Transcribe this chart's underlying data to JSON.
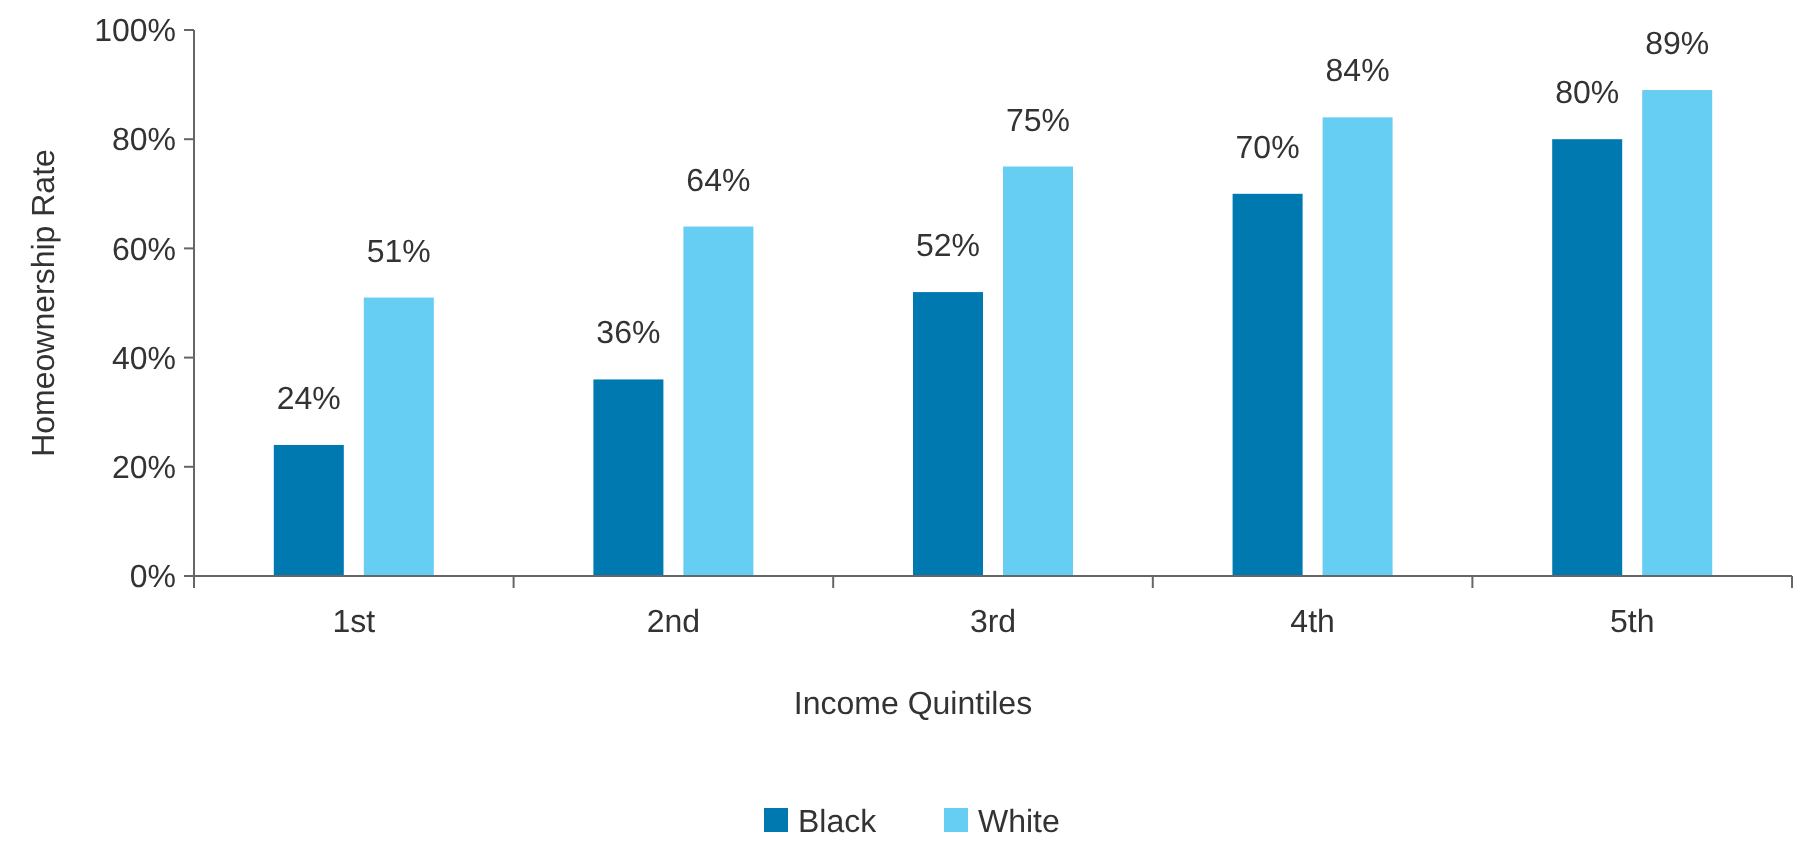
{
  "chart_data": {
    "type": "bar",
    "xlabel": "Income Quintiles",
    "ylabel": "Homeownership  Rate",
    "categories": [
      "1st",
      "2nd",
      "3rd",
      "4th",
      "5th"
    ],
    "series": [
      {
        "name": "Black",
        "color": "#0079b1",
        "values": [
          24,
          36,
          52,
          70,
          80
        ],
        "value_labels": [
          "24%",
          "36%",
          "52%",
          "70%",
          "80%"
        ]
      },
      {
        "name": "White",
        "color": "#66cdf3",
        "values": [
          51,
          64,
          75,
          84,
          89
        ],
        "value_labels": [
          "51%",
          "64%",
          "75%",
          "84%",
          "89%"
        ]
      }
    ],
    "ylim": [
      0,
      100
    ],
    "yticks": [
      {
        "value": 0,
        "label": "0%"
      },
      {
        "value": 20,
        "label": "20%"
      },
      {
        "value": 40,
        "label": "40%"
      },
      {
        "value": 60,
        "label": "60%"
      },
      {
        "value": 80,
        "label": "80%"
      },
      {
        "value": 100,
        "label": "100%"
      }
    ],
    "grid": false,
    "legend": "bottom"
  }
}
